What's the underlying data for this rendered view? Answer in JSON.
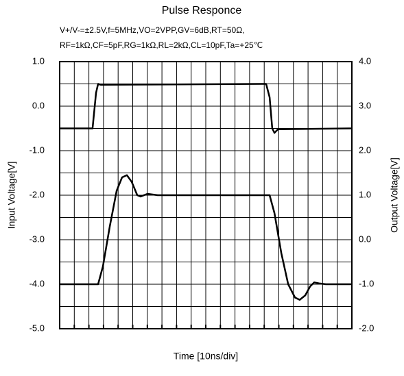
{
  "chart_data": {
    "type": "line",
    "title": "Pulse Responce",
    "subtitle": [
      "V+/V-=±2.5V,f=5MHz,VO=2VPP,GV=6dB,RT=50Ω,",
      "RF=1kΩ,CF=5pF,RG=1kΩ,RL=2kΩ,CL=10pF,Ta=+25℃"
    ],
    "xlabel": "Time [10ns/div]",
    "ylabel": "Input Voltage[V]",
    "y2label": "Output Voltage[V]",
    "xlim": [
      0,
      200
    ],
    "xticks": [
      0,
      10,
      20,
      30,
      40,
      50,
      60,
      70,
      80,
      90,
      100,
      110,
      120,
      130,
      140,
      150,
      160,
      170,
      180,
      190,
      200
    ],
    "ylim": [
      -5,
      1
    ],
    "yticks": [
      {
        "value": 1,
        "label": "1.0"
      },
      {
        "value": 0,
        "label": "0.0"
      },
      {
        "value": -1,
        "label": "-1.0"
      },
      {
        "value": -2,
        "label": "-2.0"
      },
      {
        "value": -3,
        "label": "-3.0"
      },
      {
        "value": -4,
        "label": "-4.0"
      },
      {
        "value": -5,
        "label": "-5.0"
      }
    ],
    "y_grid": [
      0.5,
      -0.5,
      -1.5,
      -2.5,
      -3.5,
      -4.5
    ],
    "y2lim": [
      -2,
      4
    ],
    "y2ticks": [
      {
        "value": 4,
        "label": "4.0"
      },
      {
        "value": 3,
        "label": "3.0"
      },
      {
        "value": 2,
        "label": "2.0"
      },
      {
        "value": 1,
        "label": "1.0"
      },
      {
        "value": 0,
        "label": "0.0"
      },
      {
        "value": -1,
        "label": "-1.0"
      },
      {
        "value": -2,
        "label": "-2.0"
      }
    ],
    "grid": true,
    "series": [
      {
        "color": "#000000",
        "axis": "y",
        "x": [
          0,
          22.5,
          24.9,
          26.3,
          28.2,
          141.3,
          143.7,
          145.5,
          147.0,
          149.4,
          200
        ],
        "values": [
          -0.5,
          -0.5,
          0.3,
          0.5,
          0.48,
          0.5,
          0.2,
          -0.5,
          -0.6,
          -0.52,
          -0.5
        ]
      },
      {
        "color": "#000000",
        "axis": "y2",
        "x": [
          0,
          26.3,
          29.6,
          34.3,
          39.0,
          42.7,
          46.0,
          49.3,
          53.1,
          55.4,
          60.1,
          67.1,
          143.7,
          147.0,
          151.7,
          156.4,
          161.1,
          164.3,
          168.1,
          171.4,
          174.2,
          177.5,
          182.2,
          200
        ],
        "values": [
          -1.0,
          -1.0,
          -0.6,
          0.3,
          1.1,
          1.4,
          1.45,
          1.3,
          1.0,
          0.97,
          1.03,
          1.0,
          1.0,
          0.6,
          -0.3,
          -1.0,
          -1.3,
          -1.35,
          -1.25,
          -1.05,
          -0.96,
          -0.98,
          -1.0,
          -1.0
        ]
      }
    ]
  }
}
